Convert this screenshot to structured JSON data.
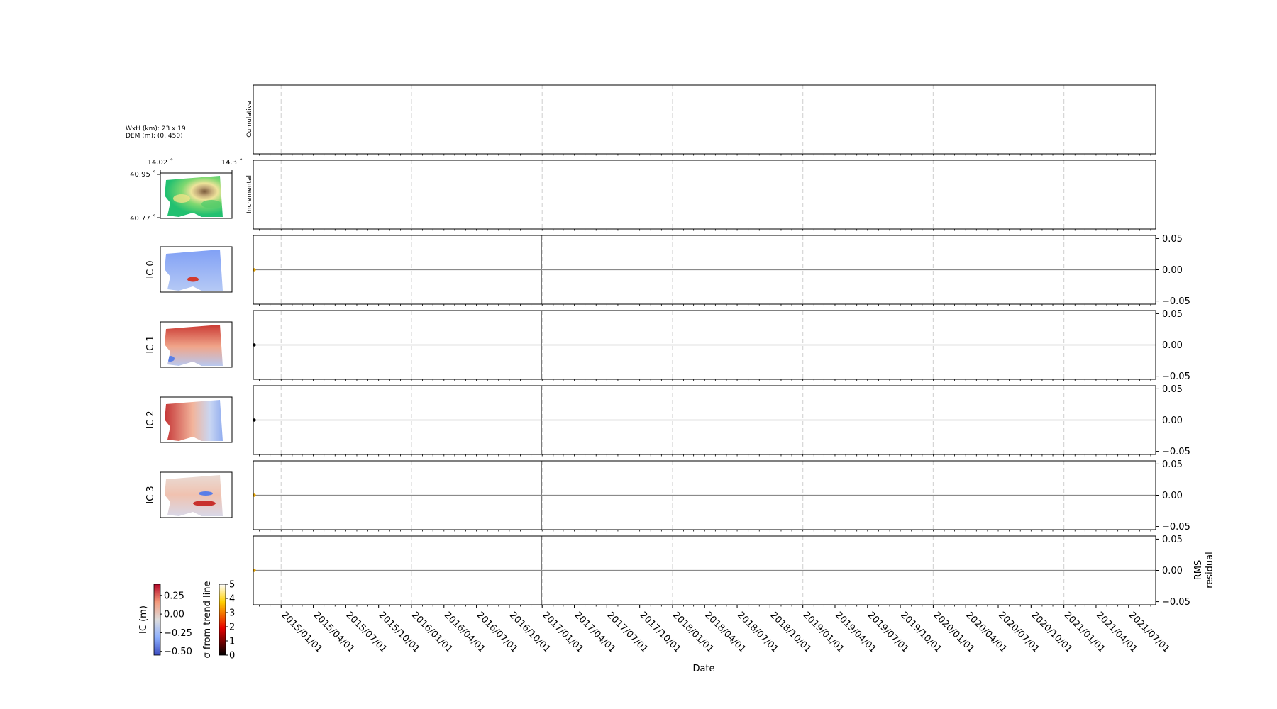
{
  "info": {
    "size_line": "WxH (km): 23 x 19",
    "dem_line": "DEM (m): (0, 450)"
  },
  "dem_map": {
    "lon_labels": [
      "14.02 ˚",
      "14.3 ˚"
    ],
    "lat_labels": [
      "40.95 ˚",
      "40.77 ˚"
    ],
    "colormap": "terrain"
  },
  "panel_labels": {
    "cumulative": "Cumulative",
    "incremental": "Incremental",
    "ic_maps": [
      "IC 0",
      "IC 1",
      "IC 2",
      "IC 3"
    ],
    "rms": [
      "RMS",
      "residual"
    ]
  },
  "colorbars": {
    "ic": {
      "label": "IC (m)",
      "ticks": [
        "0.25",
        "0.00",
        "−0.25",
        "−0.50"
      ],
      "colormap": "coolwarm",
      "range": [
        -0.55,
        0.4
      ]
    },
    "sigma": {
      "label": "σ from trend line",
      "ticks": [
        "5",
        "4",
        "3",
        "2",
        "1",
        "0"
      ],
      "colormap": "hot",
      "range": [
        0,
        5
      ]
    }
  },
  "chart_data": {
    "type": "line",
    "xlabel": "Date",
    "x_range": [
      "2014-10-15",
      "2021-09-15"
    ],
    "date_ticks": [
      "2015/01/01",
      "2015/04/01",
      "2015/07/01",
      "2015/10/01",
      "2016/01/01",
      "2016/04/01",
      "2016/07/01",
      "2016/10/01",
      "2017/01/01",
      "2017/04/01",
      "2017/07/01",
      "2017/10/01",
      "2018/01/01",
      "2018/04/01",
      "2018/07/01",
      "2018/10/01",
      "2019/01/01",
      "2019/04/01",
      "2019/07/01",
      "2019/10/01",
      "2020/01/01",
      "2020/04/01",
      "2020/07/01",
      "2020/10/01",
      "2021/01/01",
      "2021/04/01",
      "2021/07/01"
    ],
    "year_gridlines": [
      "2015/01/01",
      "2016/01/01",
      "2017/01/01",
      "2018/01/01",
      "2019/01/01",
      "2020/01/01",
      "2021/01/01"
    ],
    "grid": "dashed vertical at each year",
    "acquisition_marker": "2016/12/30",
    "series": [
      {
        "name": "Cumulative",
        "values": [],
        "y_ticks": []
      },
      {
        "name": "Incremental",
        "values": [],
        "y_ticks": []
      },
      {
        "name": "IC 0",
        "values": [
          0.0
        ],
        "y_ticks": [
          "0.05",
          "0.00",
          "−0.05"
        ],
        "ylim": [
          -0.055,
          0.055
        ],
        "marker_color": "#e6a300"
      },
      {
        "name": "IC 1",
        "values": [
          0.0
        ],
        "y_ticks": [
          "0.05",
          "0.00",
          "−0.05"
        ],
        "ylim": [
          -0.055,
          0.055
        ],
        "marker_color": "#000000"
      },
      {
        "name": "IC 2",
        "values": [
          0.0
        ],
        "y_ticks": [
          "0.05",
          "0.00",
          "−0.05"
        ],
        "ylim": [
          -0.055,
          0.055
        ],
        "marker_color": "#000000"
      },
      {
        "name": "IC 3",
        "values": [
          0.0
        ],
        "y_ticks": [
          "0.05",
          "0.00",
          "−0.05"
        ],
        "ylim": [
          -0.055,
          0.055
        ],
        "marker_color": "#e6a300"
      },
      {
        "name": "RMS residual",
        "values": [
          0.0
        ],
        "y_ticks": [
          "0.05",
          "0.00",
          "−0.05"
        ],
        "ylim": [
          -0.055,
          0.055
        ],
        "marker_color": "#e6a300"
      }
    ]
  }
}
